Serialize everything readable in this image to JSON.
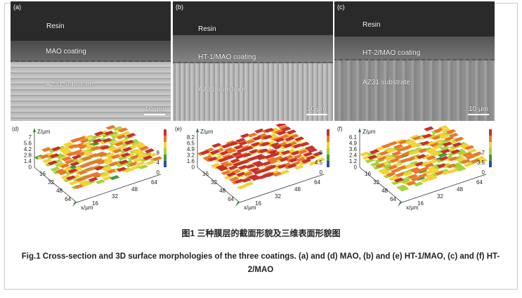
{
  "micrographs": [
    {
      "panel": "(a)",
      "resin": "Resin",
      "coating": "MAO coating",
      "substrate": "AZ31 substrate",
      "scale": "10 μm"
    },
    {
      "panel": "(b)",
      "resin": "Resin",
      "coating": "HT-1/MAO coating",
      "substrate": "AZ31 substrate",
      "scale": "10 μm"
    },
    {
      "panel": "(c)",
      "resin": "Resin",
      "coating": "HT-2/MAO coating",
      "substrate": "AZ31 substrate",
      "scale": "10 μm"
    }
  ],
  "surface_plots": [
    {
      "panel": "(d)",
      "z_axis_label": "Z/μm",
      "z_ticks": [
        "7",
        "5.6",
        "4.2",
        "2.8",
        "1.4",
        "0"
      ],
      "colorbar_ticks": [
        "8",
        "4",
        "0"
      ],
      "x_axis_label": "x/μm",
      "x_ticks": [
        "16",
        "32",
        "48",
        "64"
      ],
      "y_ticks": [
        "16",
        "32",
        "48",
        "64"
      ],
      "palette": [
        "#2b4fa8",
        "#3c9c3c",
        "#a6d23a",
        "#f3d23a",
        "#e8782a",
        "#c8302a"
      ]
    },
    {
      "panel": "(e)",
      "z_axis_label": "Z/μm",
      "z_ticks": [
        "8.2",
        "6.5",
        "4.9",
        "3.2",
        "1.6",
        "0"
      ],
      "colorbar_ticks": [
        "9",
        "4.5",
        "0"
      ],
      "x_axis_label": "x/μm",
      "x_ticks": [
        "16",
        "32",
        "48",
        "64"
      ],
      "y_ticks": [
        "16",
        "32",
        "48",
        "64"
      ],
      "palette": [
        "#2b4fa8",
        "#3c9c3c",
        "#a6d23a",
        "#f3d23a",
        "#e8782a",
        "#c8302a"
      ]
    },
    {
      "panel": "(f)",
      "z_axis_label": "Z/μm",
      "z_ticks": [
        "6.1",
        "4.9",
        "3.6",
        "2.4",
        "1.2",
        "0"
      ],
      "colorbar_ticks": [
        "7",
        "3.5",
        "0"
      ],
      "x_axis_label": "x/μm",
      "x_ticks": [
        "16",
        "32",
        "48",
        "64"
      ],
      "y_ticks": [
        "16",
        "32",
        "48",
        "64"
      ],
      "palette": [
        "#2b4fa8",
        "#3c9c3c",
        "#a6d23a",
        "#f3d23a",
        "#e8782a",
        "#c8302a"
      ]
    }
  ],
  "caption": {
    "chinese": "图1    三种膜层的截面形貌及三维表面形貌图",
    "english": "Fig.1   Cross-section and 3D surface morphologies of the three coatings. (a) and (d) MAO, (b) and (e) HT-1/MAO, (c) and (f) HT-2/MAO"
  }
}
